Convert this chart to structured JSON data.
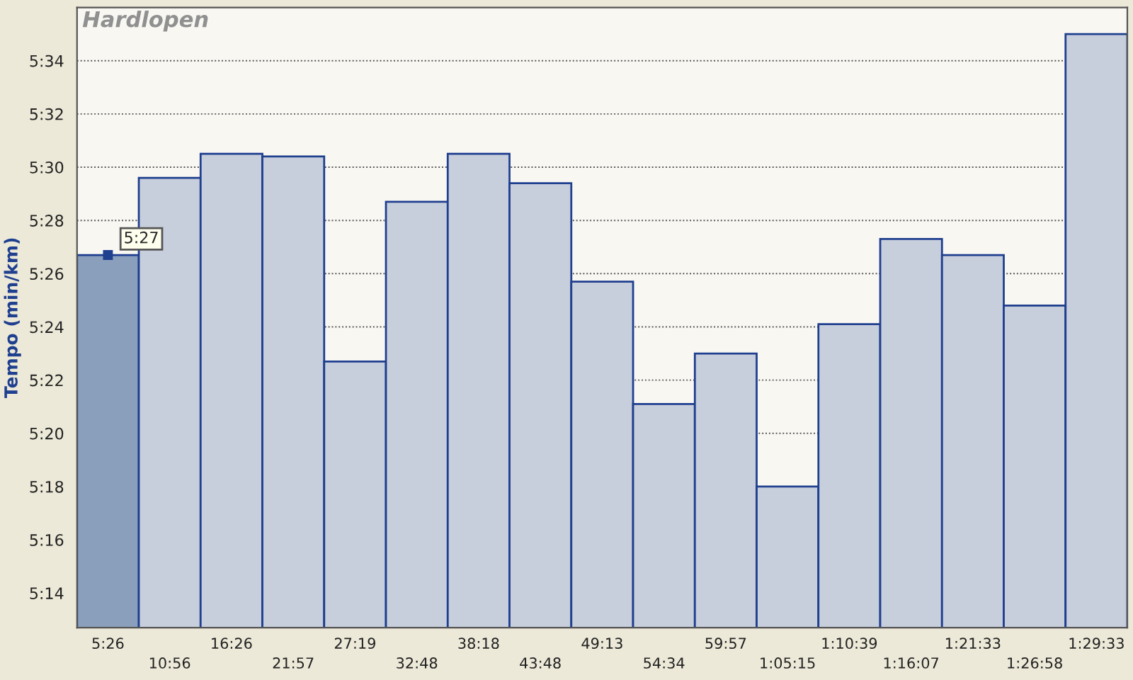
{
  "chart_data": {
    "type": "bar",
    "title": "Hardlopen",
    "ylabel": "Tempo (min/km)",
    "categories": [
      "5:26",
      "10:56",
      "16:26",
      "21:57",
      "27:19",
      "32:48",
      "38:18",
      "43:48",
      "49:13",
      "54:34",
      "59:57",
      "1:05:15",
      "1:10:39",
      "1:16:07",
      "1:21:33",
      "1:26:58",
      "1:29:33"
    ],
    "values": [
      326.7,
      329.6,
      330.5,
      330.4,
      322.7,
      328.7,
      330.5,
      329.4,
      325.7,
      321.1,
      323.0,
      318.0,
      324.1,
      327.3,
      326.7,
      324.8,
      335.0
    ],
    "colors": [
      "#8a9fbb",
      "#c8cfdc",
      "#c8cfdc",
      "#c8cfdc",
      "#c8cfdc",
      "#c8cfdc",
      "#c8cfdc",
      "#c8cfdc",
      "#c8cfdc",
      "#c8cfdc",
      "#c8cfdc",
      "#c8cfdc",
      "#c8cfdc",
      "#c8cfdc",
      "#c8cfdc",
      "#c8cfdc",
      "#c8cfdc"
    ],
    "ylim": [
      312.7,
      336.0
    ],
    "yticks": [
      {
        "value": 314,
        "label": "5:14"
      },
      {
        "value": 316,
        "label": "5:16"
      },
      {
        "value": 318,
        "label": "5:18"
      },
      {
        "value": 320,
        "label": "5:20"
      },
      {
        "value": 322,
        "label": "5:22"
      },
      {
        "value": 324,
        "label": "5:24"
      },
      {
        "value": 326,
        "label": "5:26"
      },
      {
        "value": 328,
        "label": "5:28"
      },
      {
        "value": 330,
        "label": "5:30"
      },
      {
        "value": 332,
        "label": "5:32"
      },
      {
        "value": 334,
        "label": "5:34"
      }
    ],
    "grid": "y",
    "annotations": [
      {
        "text": "5:27",
        "x": "5:26",
        "y": 326.7
      }
    ]
  }
}
